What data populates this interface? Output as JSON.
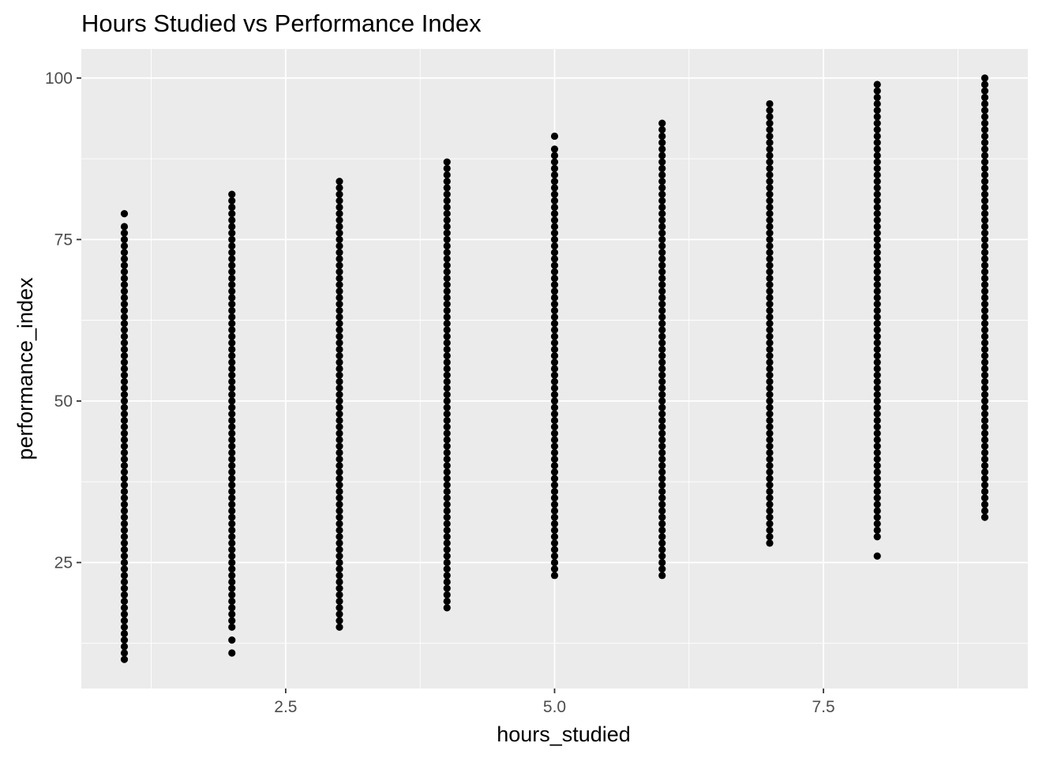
{
  "chart_data": {
    "type": "scatter",
    "title": "Hours Studied vs Performance Index",
    "xlabel": "hours_studied",
    "ylabel": "performance_index",
    "xlim": [
      0.6,
      9.4
    ],
    "ylim": [
      5.5,
      104.5
    ],
    "x_ticks": [
      2.5,
      5.0,
      7.5
    ],
    "x_tick_labels": [
      "2.5",
      "5.0",
      "7.5"
    ],
    "x_minor_ticks": [
      1.25,
      3.75,
      6.25,
      8.75
    ],
    "y_ticks": [
      25,
      50,
      75,
      100
    ],
    "y_tick_labels": [
      "25",
      "50",
      "75",
      "100"
    ],
    "y_minor_ticks": [
      12.5,
      37.5,
      62.5,
      87.5
    ],
    "grid": true,
    "legend": "none",
    "point_color": "#000000",
    "panel_background": "#ebebeb",
    "series": [
      {
        "points_by_x": [
          {
            "x": 1,
            "y_min": 10,
            "y_max": 77,
            "extra_y": [
              79
            ]
          },
          {
            "x": 2,
            "y_min": 15,
            "y_max": 82,
            "extra_y": [
              11,
              13
            ]
          },
          {
            "x": 3,
            "y_min": 15,
            "y_max": 84,
            "extra_y": []
          },
          {
            "x": 4,
            "y_min": 18,
            "y_max": 87,
            "extra_y": []
          },
          {
            "x": 5,
            "y_min": 23,
            "y_max": 89,
            "extra_y": [
              91
            ]
          },
          {
            "x": 6,
            "y_min": 23,
            "y_max": 93,
            "extra_y": []
          },
          {
            "x": 7,
            "y_min": 28,
            "y_max": 96,
            "extra_y": []
          },
          {
            "x": 8,
            "y_min": 29,
            "y_max": 99,
            "extra_y": [
              26
            ]
          },
          {
            "x": 9,
            "y_min": 32,
            "y_max": 100,
            "extra_y": []
          }
        ]
      }
    ]
  }
}
